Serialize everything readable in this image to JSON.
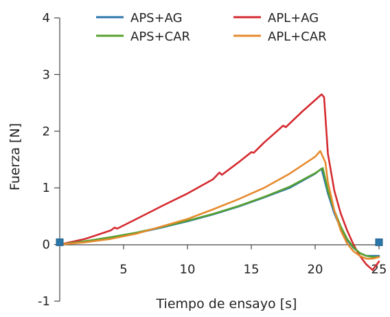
{
  "chart_data": {
    "type": "line",
    "xlabel": "Tiempo de ensayo [s]",
    "ylabel": "Fuerza  [N]",
    "xlim": [
      0,
      25
    ],
    "ylim": [
      -1,
      4
    ],
    "x_ticks": [
      5,
      10,
      15,
      20,
      25
    ],
    "y_ticks": [
      -1,
      0,
      1,
      2,
      3,
      4
    ],
    "grid": false,
    "legend_position": "top",
    "series": [
      {
        "name": "APS+AG",
        "color": "#2a76a8",
        "x": [
          0,
          2,
          4,
          6,
          8,
          10,
          12,
          14,
          16,
          18,
          20,
          20.5,
          21,
          21.5,
          22,
          22.5,
          23,
          23.5,
          24,
          24.5,
          25
        ],
        "y": [
          0,
          0.05,
          0.12,
          0.2,
          0.3,
          0.41,
          0.53,
          0.67,
          0.83,
          1.0,
          1.25,
          1.34,
          0.9,
          0.55,
          0.28,
          0.08,
          -0.06,
          -0.15,
          -0.2,
          -0.2,
          -0.2
        ]
      },
      {
        "name": "APL+AG",
        "color": "#d42a2f",
        "x": [
          0,
          2,
          4,
          4.3,
          4.5,
          6,
          8,
          10,
          12,
          12.5,
          12.7,
          14,
          15,
          15.2,
          16,
          17.5,
          17.7,
          19,
          20,
          20.5,
          20.7,
          21,
          21.5,
          22,
          22.5,
          23,
          23.5,
          24,
          24.5,
          25
        ],
        "y": [
          0,
          0.1,
          0.25,
          0.3,
          0.28,
          0.45,
          0.68,
          0.9,
          1.15,
          1.27,
          1.23,
          1.45,
          1.63,
          1.62,
          1.8,
          2.1,
          2.07,
          2.35,
          2.55,
          2.65,
          2.6,
          1.6,
          0.95,
          0.55,
          0.25,
          0.0,
          -0.2,
          -0.35,
          -0.45,
          -0.3
        ]
      },
      {
        "name": "APS+CAR",
        "color": "#57a02f",
        "x": [
          0,
          2,
          4,
          6,
          8,
          10,
          12,
          14,
          16,
          18,
          20,
          20.6,
          21,
          21.5,
          22,
          22.5,
          23,
          23.5,
          24,
          24.5,
          25
        ],
        "y": [
          0,
          0.06,
          0.13,
          0.21,
          0.31,
          0.42,
          0.54,
          0.68,
          0.84,
          1.02,
          1.26,
          1.35,
          0.95,
          0.6,
          0.32,
          0.1,
          -0.05,
          -0.15,
          -0.2,
          -0.22,
          -0.22
        ]
      },
      {
        "name": "APL+CAR",
        "color": "#e68a2e",
        "x": [
          0,
          2,
          4,
          6,
          8,
          10,
          12,
          14,
          16,
          18,
          20,
          20.4,
          20.8,
          21,
          21.5,
          22,
          22.5,
          23,
          23.5,
          24,
          24.5,
          25
        ],
        "y": [
          0,
          0.04,
          0.1,
          0.19,
          0.32,
          0.45,
          0.62,
          0.8,
          1.0,
          1.25,
          1.55,
          1.65,
          1.45,
          1.1,
          0.6,
          0.25,
          0.02,
          -0.12,
          -0.2,
          -0.25,
          -0.25,
          -0.22
        ]
      }
    ],
    "markers": [
      {
        "x": 0,
        "y": 0.04,
        "color": "#2a76a8"
      },
      {
        "x": 25,
        "y": 0.04,
        "color": "#2a76a8"
      }
    ]
  }
}
